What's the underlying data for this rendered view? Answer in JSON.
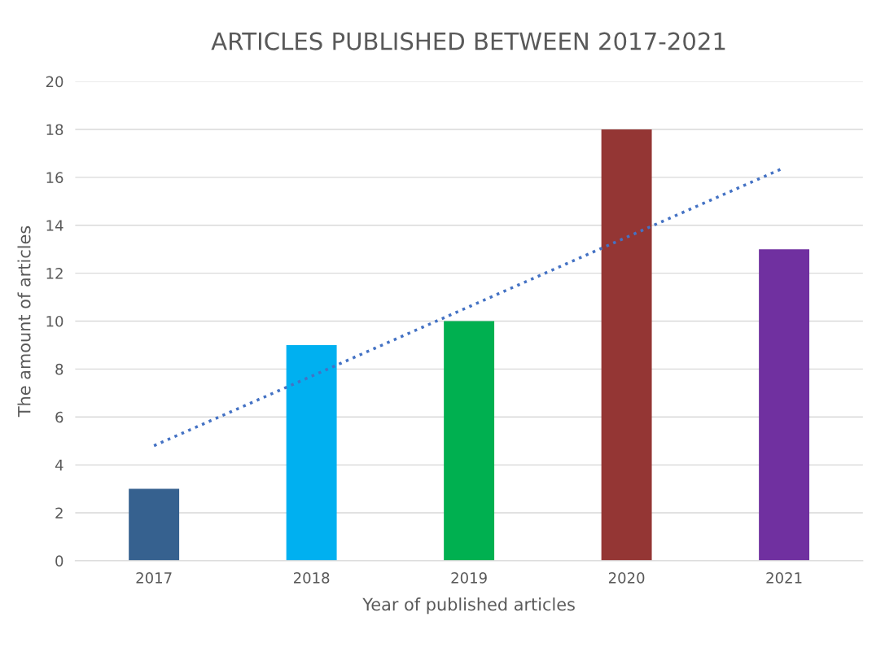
{
  "chart_data": {
    "type": "bar",
    "title": "ARTICLES PUBLISHED BETWEEN 2017-2021",
    "xlabel": "Year of published articles",
    "ylabel": "The amount of articles",
    "categories": [
      "2017",
      "2018",
      "2019",
      "2020",
      "2021"
    ],
    "series": [
      {
        "colors": [
          "#36618f",
          "#00b0f0",
          "#00b050",
          "#943634",
          "#7030a0"
        ],
        "values": [
          3,
          9,
          10,
          18,
          13
        ]
      },
      {
        "type": "line",
        "color": "#4472c4",
        "line_style": "dotted",
        "values": [
          4.8,
          7.7,
          10.6,
          13.5,
          16.4
        ]
      }
    ],
    "ylim": [
      0,
      20
    ],
    "yticks": [
      0,
      2,
      4,
      6,
      8,
      10,
      12,
      14,
      16,
      18,
      20
    ],
    "grid": "y"
  }
}
